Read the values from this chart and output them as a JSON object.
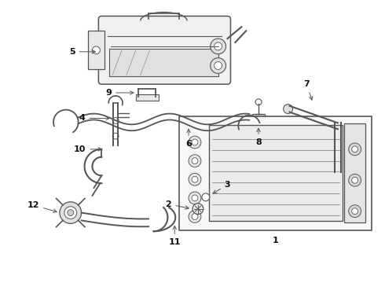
{
  "background_color": "#ffffff",
  "line_color": "#555555",
  "label_color": "#111111",
  "fig_width": 4.9,
  "fig_height": 3.6,
  "dpi": 100
}
